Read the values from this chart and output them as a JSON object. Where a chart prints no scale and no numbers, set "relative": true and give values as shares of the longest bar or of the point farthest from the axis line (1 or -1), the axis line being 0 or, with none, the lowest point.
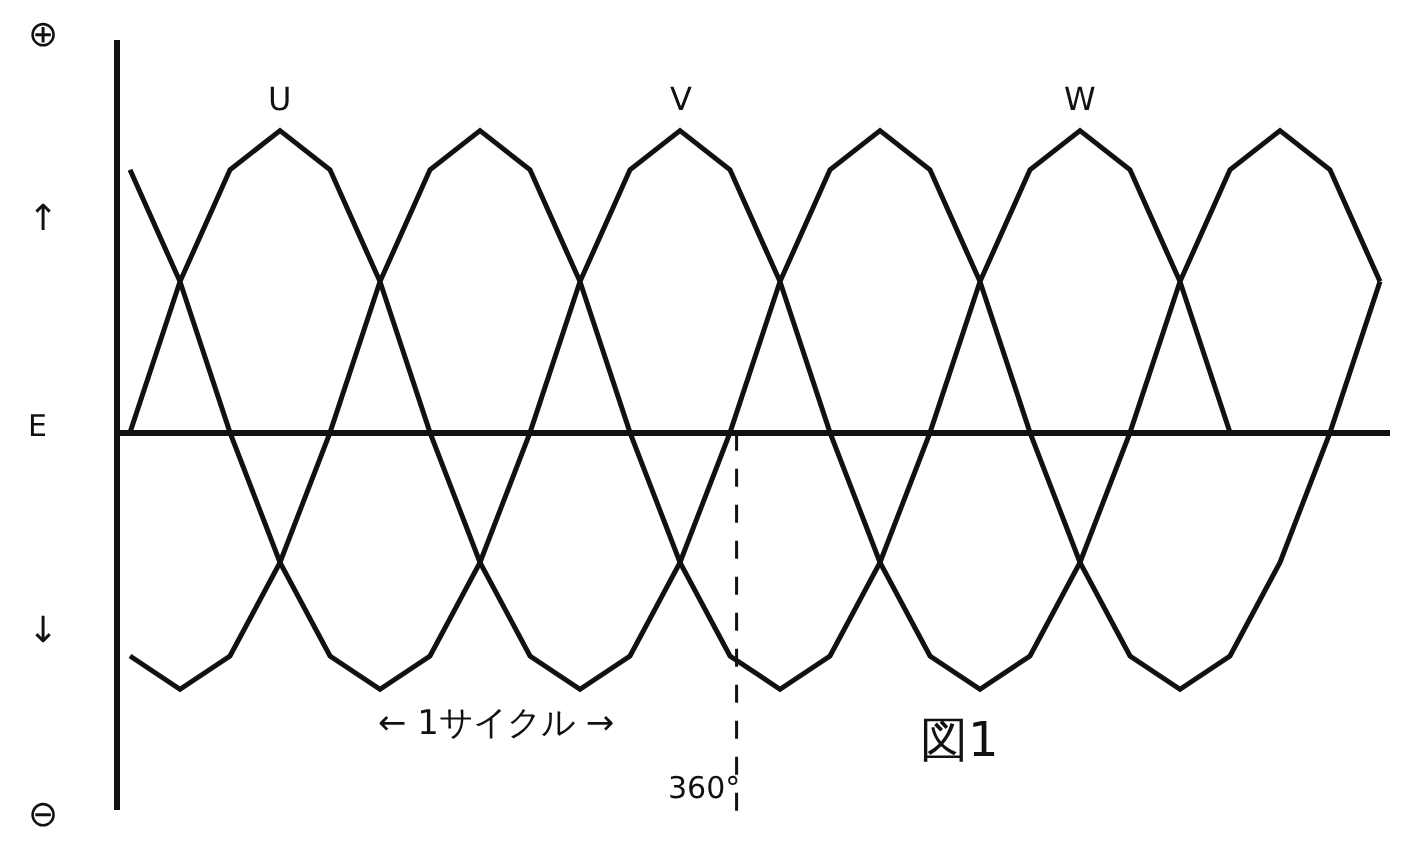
{
  "chart_data": {
    "type": "line",
    "relative": true,
    "marker": "none",
    "line_style": "solid",
    "categories": [
      null,
      null,
      null,
      null,
      null,
      null,
      null,
      null,
      null,
      null,
      null,
      null,
      null,
      null,
      null,
      null,
      null,
      null,
      null,
      null,
      null,
      null,
      null,
      null,
      null,
      null
    ],
    "series": [
      {
        "name": "U",
        "color": "#111111",
        "values": [
          0,
          0.5,
          0.87,
          1,
          0.87,
          0.5,
          0,
          -0.43,
          -0.74,
          -0.85,
          -0.74,
          -0.43,
          0,
          0.5,
          0.87,
          1,
          0.87,
          0.5,
          0,
          -0.43,
          -0.74,
          -0.85,
          -0.74,
          -0.43,
          0,
          0.5
        ]
      },
      {
        "name": "V",
        "color": "#111111",
        "values": [
          0.87,
          0.5,
          0,
          -0.43,
          -0.74,
          -0.85,
          -0.74,
          -0.43,
          0,
          0.5,
          0.87,
          1,
          0.87,
          0.5,
          0,
          -0.43,
          -0.74,
          -0.85,
          -0.74,
          -0.43,
          0,
          0.5,
          0.87,
          1,
          0.87,
          0.5
        ]
      },
      {
        "name": "W",
        "color": "#111111",
        "values": [
          -0.74,
          -0.85,
          -0.74,
          -0.43,
          0,
          0.5,
          0.87,
          1,
          0.87,
          0.5,
          0,
          -0.43,
          -0.74,
          -0.85,
          -0.74,
          -0.43,
          0,
          0.5,
          0.87,
          1,
          0.87,
          0.5,
          0,
          null,
          null,
          null
        ]
      }
    ],
    "annotations": [
      "⊕",
      "↑",
      "E",
      "↓",
      "⊖",
      "← 1サイクル →",
      "360°",
      "図1"
    ]
  }
}
